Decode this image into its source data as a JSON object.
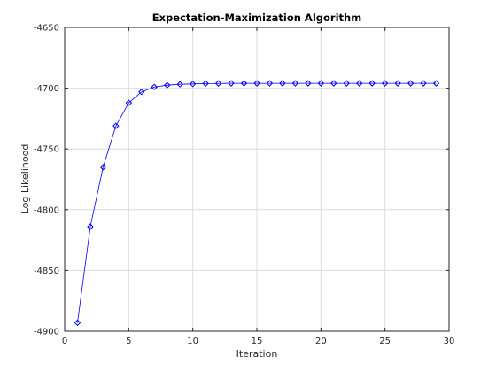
{
  "chart_data": {
    "type": "line",
    "title": "Expectation-Maximization Algorithm",
    "xlabel": "Iteration",
    "ylabel": "Log Likelihood",
    "xlim": [
      0,
      30
    ],
    "ylim": [
      -4900,
      -4650
    ],
    "xticks": [
      0,
      5,
      10,
      15,
      20,
      25,
      30
    ],
    "yticks": [
      -4900,
      -4850,
      -4800,
      -4750,
      -4700,
      -4650
    ],
    "xtick_labels": [
      "0",
      "5",
      "10",
      "15",
      "20",
      "25",
      "30"
    ],
    "ytick_labels": [
      "-4900",
      "-4850",
      "-4800",
      "-4750",
      "-4700",
      "-4650"
    ],
    "grid": true,
    "line_color": "#0000ff",
    "marker": "diamond",
    "series": [
      {
        "x": [
          1,
          2,
          3,
          4,
          5,
          6,
          7,
          8,
          9,
          10,
          11,
          12,
          13,
          14,
          15,
          16,
          17,
          18,
          19,
          20,
          21,
          22,
          23,
          24,
          25,
          26,
          27,
          28,
          29
        ],
        "values": [
          -4893,
          -4814,
          -4765,
          -4731,
          -4712,
          -4703,
          -4699,
          -4697.5,
          -4696.8,
          -4696.5,
          -4696.2,
          -4696.1,
          -4696,
          -4696,
          -4696,
          -4696,
          -4696,
          -4696,
          -4696,
          -4696,
          -4696,
          -4696,
          -4696,
          -4696,
          -4696,
          -4696,
          -4696,
          -4696,
          -4696
        ]
      }
    ]
  }
}
